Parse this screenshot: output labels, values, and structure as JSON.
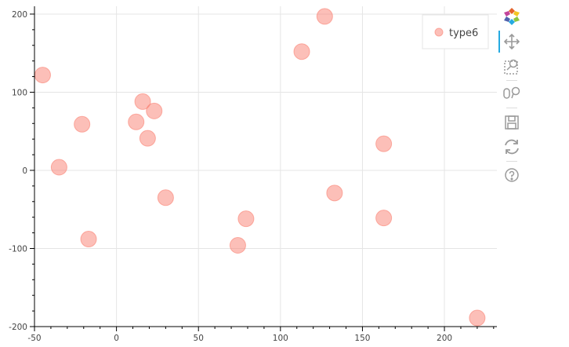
{
  "chart_data": {
    "type": "scatter",
    "title": "",
    "xlabel": "",
    "ylabel": "",
    "xlim": [
      -50,
      232
    ],
    "ylim": [
      -200,
      210
    ],
    "xticks": [
      -50,
      0,
      50,
      100,
      150,
      200
    ],
    "yticks": [
      -200,
      -100,
      0,
      100,
      200
    ],
    "grid": true,
    "legend_position": "top-right",
    "series": [
      {
        "name": "type6",
        "color": "#fa8072",
        "x": [
          -45,
          -35,
          -21,
          -17,
          12,
          16,
          19,
          23,
          30,
          74,
          79,
          113,
          127,
          133,
          163,
          163,
          220
        ],
        "y": [
          122,
          4,
          59,
          -88,
          62,
          88,
          41,
          76,
          -35,
          -96,
          -62,
          152,
          197,
          -29,
          34,
          -61,
          -189
        ]
      }
    ]
  },
  "toolbar": {
    "tools": [
      "bokeh-logo-icon",
      "pan-icon",
      "box-zoom-icon",
      "wheel-zoom-icon",
      "save-icon",
      "reset-icon",
      "help-icon"
    ]
  }
}
